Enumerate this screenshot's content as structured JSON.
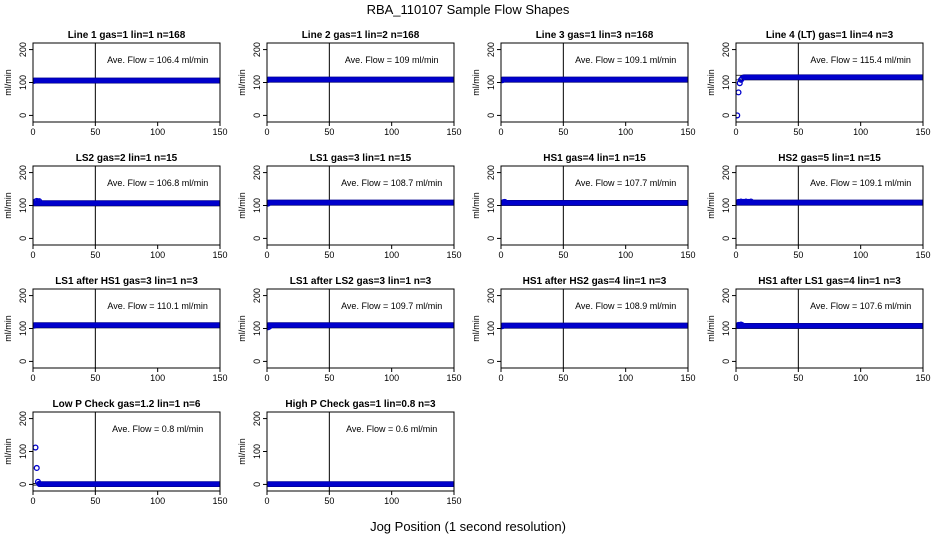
{
  "figure": {
    "title": "RBA_110107  Sample Flow Shapes",
    "xlabel": "Jog Position (1 second resolution)"
  },
  "chart_data": [
    {
      "type": "scatter",
      "title": "Line 1 gas=1 lin=1 n=168",
      "ylabel": "ml/min",
      "annotation": "Ave. Flow =  106.4  ml/min",
      "xlim": [
        0,
        150
      ],
      "ylim": [
        -20,
        220
      ],
      "xticks": [
        0,
        50,
        100,
        150
      ],
      "yticks": [
        0,
        100,
        200
      ],
      "vline": 50,
      "hlines": [
        98,
        112
      ],
      "series": [
        {
          "color": "#0000cc",
          "points": [
            [
              1,
              105
            ]
          ],
          "plateau": {
            "x_start": 1,
            "x_end": 150,
            "y": 106
          }
        }
      ]
    },
    {
      "type": "scatter",
      "title": "Line 2 gas=1 lin=2 n=168",
      "ylabel": "ml/min",
      "annotation": "Ave. Flow =  109  ml/min",
      "xlim": [
        0,
        150
      ],
      "ylim": [
        -20,
        220
      ],
      "xticks": [
        0,
        50,
        100,
        150
      ],
      "yticks": [
        0,
        100,
        200
      ],
      "vline": 50,
      "hlines": [
        101,
        115
      ],
      "series": [
        {
          "color": "#0000cc",
          "points": [
            [
              1,
              108
            ]
          ],
          "plateau": {
            "x_start": 1,
            "x_end": 150,
            "y": 109
          }
        }
      ]
    },
    {
      "type": "scatter",
      "title": "Line 3 gas=1 lin=3 n=168",
      "ylabel": "ml/min",
      "annotation": "Ave. Flow =  109.1  ml/min",
      "xlim": [
        0,
        150
      ],
      "ylim": [
        -20,
        220
      ],
      "xticks": [
        0,
        50,
        100,
        150
      ],
      "yticks": [
        0,
        100,
        200
      ],
      "vline": 50,
      "hlines": [
        101,
        115
      ],
      "series": [
        {
          "color": "#0000cc",
          "points": [
            [
              1,
              107
            ]
          ],
          "plateau": {
            "x_start": 1,
            "x_end": 150,
            "y": 109
          }
        }
      ]
    },
    {
      "type": "scatter",
      "title": "Line 4 (LT) gas=1 lin=4 n=3",
      "ylabel": "ml/min",
      "annotation": "Ave. Flow =  115.4  ml/min",
      "xlim": [
        0,
        150
      ],
      "ylim": [
        -20,
        220
      ],
      "xticks": [
        0,
        50,
        100,
        150
      ],
      "yticks": [
        0,
        100,
        200
      ],
      "vline": 50,
      "hlines": [
        108,
        122
      ],
      "series": [
        {
          "color": "#0000cc",
          "points": [
            [
              1,
              0
            ],
            [
              2,
              70
            ],
            [
              3,
              98
            ],
            [
              4,
              108
            ],
            [
              5,
              113
            ]
          ],
          "plateau": {
            "x_start": 6,
            "x_end": 150,
            "y": 116
          }
        }
      ]
    },
    {
      "type": "scatter",
      "title": "LS2 gas=2 lin=1 n=15",
      "ylabel": "ml/min",
      "annotation": "Ave. Flow =  106.8  ml/min",
      "xlim": [
        0,
        150
      ],
      "ylim": [
        -20,
        220
      ],
      "xticks": [
        0,
        50,
        100,
        150
      ],
      "yticks": [
        0,
        100,
        200
      ],
      "vline": 50,
      "hlines": [
        99,
        113
      ],
      "series": [
        {
          "color": "#0000cc",
          "points": [
            [
              2,
              112
            ],
            [
              3,
              114
            ],
            [
              4,
              111
            ],
            [
              5,
              113
            ]
          ],
          "plateau": {
            "x_start": 1,
            "x_end": 150,
            "y": 107
          }
        }
      ]
    },
    {
      "type": "scatter",
      "title": "LS1 gas=3 lin=1 n=15",
      "ylabel": "ml/min",
      "annotation": "Ave. Flow =  108.7  ml/min",
      "xlim": [
        0,
        150
      ],
      "ylim": [
        -20,
        220
      ],
      "xticks": [
        0,
        50,
        100,
        150
      ],
      "yticks": [
        0,
        100,
        200
      ],
      "vline": 50,
      "hlines": [
        101,
        115
      ],
      "series": [
        {
          "color": "#0000cc",
          "points": [
            [
              1,
              106
            ]
          ],
          "plateau": {
            "x_start": 1,
            "x_end": 150,
            "y": 109
          }
        }
      ]
    },
    {
      "type": "scatter",
      "title": "HS1 gas=4 lin=1 n=15",
      "ylabel": "ml/min",
      "annotation": "Ave. Flow =  107.7  ml/min",
      "xlim": [
        0,
        150
      ],
      "ylim": [
        -20,
        220
      ],
      "xticks": [
        0,
        50,
        100,
        150
      ],
      "yticks": [
        0,
        100,
        200
      ],
      "vline": 50,
      "hlines": [
        100,
        114
      ],
      "series": [
        {
          "color": "#0000cc",
          "points": [
            [
              2,
              110
            ],
            [
              3,
              111
            ]
          ],
          "plateau": {
            "x_start": 1,
            "x_end": 150,
            "y": 108
          }
        }
      ]
    },
    {
      "type": "scatter",
      "title": "HS2 gas=5 lin=1 n=15",
      "ylabel": "ml/min",
      "annotation": "Ave. Flow =  109.1  ml/min",
      "xlim": [
        0,
        150
      ],
      "ylim": [
        -20,
        220
      ],
      "xticks": [
        0,
        50,
        100,
        150
      ],
      "yticks": [
        0,
        100,
        200
      ],
      "vline": 50,
      "hlines": [
        101,
        115
      ],
      "series": [
        {
          "color": "#0000cc",
          "points": [
            [
              2,
              111
            ],
            [
              4,
              112
            ],
            [
              6,
              111
            ],
            [
              8,
              112
            ],
            [
              10,
              111
            ],
            [
              12,
              112
            ]
          ],
          "plateau": {
            "x_start": 1,
            "x_end": 150,
            "y": 109
          }
        }
      ]
    },
    {
      "type": "scatter",
      "title": "LS1 after HS1 gas=3 lin=1 n=3",
      "ylabel": "ml/min",
      "annotation": "Ave. Flow =  110.1  ml/min",
      "xlim": [
        0,
        150
      ],
      "ylim": [
        -20,
        220
      ],
      "xticks": [
        0,
        50,
        100,
        150
      ],
      "yticks": [
        0,
        100,
        200
      ],
      "vline": 50,
      "hlines": [
        102,
        116
      ],
      "series": [
        {
          "color": "#0000cc",
          "points": [
            [
              1,
              109
            ]
          ],
          "plateau": {
            "x_start": 1,
            "x_end": 150,
            "y": 110
          }
        }
      ]
    },
    {
      "type": "scatter",
      "title": "LS1 after LS2 gas=3 lin=1 n=3",
      "ylabel": "ml/min",
      "annotation": "Ave. Flow =  109.7  ml/min",
      "xlim": [
        0,
        150
      ],
      "ylim": [
        -20,
        220
      ],
      "xticks": [
        0,
        50,
        100,
        150
      ],
      "yticks": [
        0,
        100,
        200
      ],
      "vline": 50,
      "hlines": [
        102,
        116
      ],
      "series": [
        {
          "color": "#0000cc",
          "points": [
            [
              1,
              104
            ],
            [
              2,
              106
            ]
          ],
          "plateau": {
            "x_start": 1,
            "x_end": 150,
            "y": 110
          }
        }
      ]
    },
    {
      "type": "scatter",
      "title": "HS1 after HS2 gas=4 lin=1 n=3",
      "ylabel": "ml/min",
      "annotation": "Ave. Flow =  108.9  ml/min",
      "xlim": [
        0,
        150
      ],
      "ylim": [
        -20,
        220
      ],
      "xticks": [
        0,
        50,
        100,
        150
      ],
      "yticks": [
        0,
        100,
        200
      ],
      "vline": 50,
      "hlines": [
        101,
        115
      ],
      "series": [
        {
          "color": "#0000cc",
          "points": [
            [
              1,
              107
            ]
          ],
          "plateau": {
            "x_start": 1,
            "x_end": 150,
            "y": 109
          }
        }
      ]
    },
    {
      "type": "scatter",
      "title": "HS1 after LS1 gas=4 lin=1 n=3",
      "ylabel": "ml/min",
      "annotation": "Ave. Flow =  107.6  ml/min",
      "xlim": [
        0,
        150
      ],
      "ylim": [
        -20,
        220
      ],
      "xticks": [
        0,
        50,
        100,
        150
      ],
      "yticks": [
        0,
        100,
        200
      ],
      "vline": 50,
      "hlines": [
        100,
        114
      ],
      "series": [
        {
          "color": "#0000cc",
          "points": [
            [
              2,
              111
            ],
            [
              4,
              112
            ],
            [
              5,
              110
            ]
          ],
          "plateau": {
            "x_start": 1,
            "x_end": 150,
            "y": 108
          }
        }
      ]
    },
    {
      "type": "scatter",
      "title": "Low P Check gas=1.2 lin=1 n=6",
      "ylabel": "ml/min",
      "annotation": "Ave. Flow =  0.8  ml/min",
      "xlim": [
        0,
        150
      ],
      "ylim": [
        -20,
        220
      ],
      "xticks": [
        0,
        50,
        100,
        150
      ],
      "yticks": [
        0,
        100,
        200
      ],
      "vline": 50,
      "hlines": [
        -2,
        3
      ],
      "series": [
        {
          "color": "#0000cc",
          "points": [
            [
              2,
              112
            ],
            [
              3,
              50
            ],
            [
              4,
              8
            ],
            [
              5,
              2
            ]
          ],
          "plateau": {
            "x_start": 5,
            "x_end": 150,
            "y": 1
          }
        }
      ]
    },
    {
      "type": "scatter",
      "title": "High P Check gas=1 lin=0.8 n=3",
      "ylabel": "ml/min",
      "annotation": "Ave. Flow =  0.6  ml/min",
      "xlim": [
        0,
        150
      ],
      "ylim": [
        -20,
        220
      ],
      "xticks": [
        0,
        50,
        100,
        150
      ],
      "yticks": [
        0,
        100,
        200
      ],
      "vline": 50,
      "hlines": [
        -2,
        3
      ],
      "series": [
        {
          "color": "#0000cc",
          "points": [],
          "plateau": {
            "x_start": 1,
            "x_end": 150,
            "y": 1
          }
        }
      ]
    }
  ]
}
